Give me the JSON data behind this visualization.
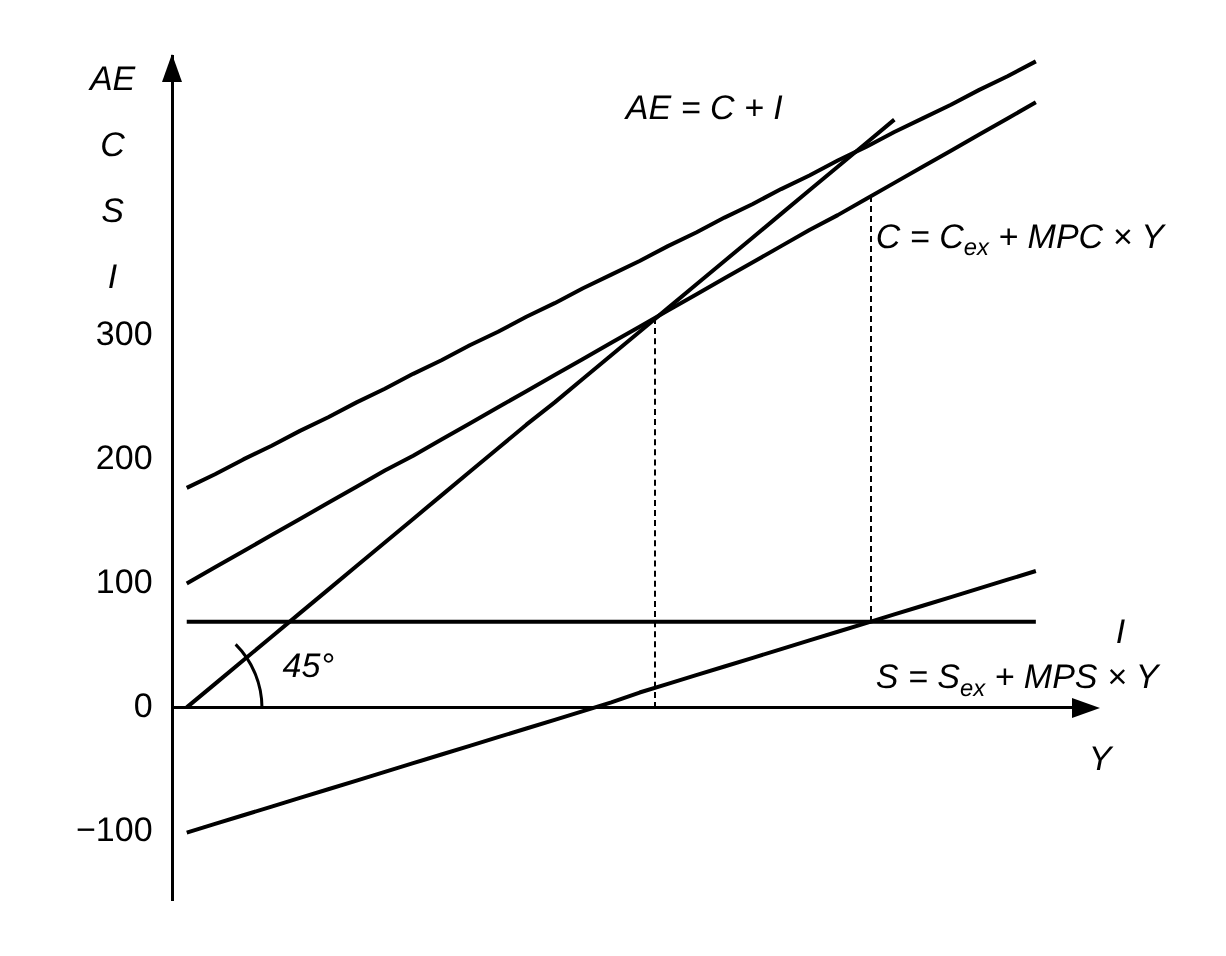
{
  "chart_data": {
    "type": "line",
    "xlabel": "Y",
    "ylabel": "AE C S I",
    "categories": [
      null,
      null,
      null,
      null,
      null,
      null,
      null,
      null,
      null,
      null,
      null,
      null,
      null,
      null,
      null,
      null,
      null,
      null,
      null,
      null,
      null,
      null,
      null,
      null,
      null,
      null,
      null,
      null,
      null,
      null,
      null
    ],
    "series": [
      {
        "color": "#000000",
        "values": [
          0,
          19,
          38,
          57,
          76,
          95,
          114,
          133,
          152,
          171,
          190,
          209,
          228,
          246,
          265,
          284,
          303,
          322,
          341,
          360,
          379,
          398,
          417,
          436,
          455,
          474,
          null,
          null,
          null,
          null,
          null
        ]
      },
      {
        "name": "AE = C + I",
        "color": "#000000",
        "values": [
          177,
          188,
          200,
          211,
          223,
          234,
          246,
          257,
          269,
          280,
          292,
          303,
          315,
          326,
          338,
          349,
          360,
          372,
          383,
          395,
          406,
          418,
          429,
          441,
          452,
          464,
          475,
          486,
          498,
          509,
          521
        ]
      },
      {
        "name": "C = C$_{ex}$ + MPC × Y",
        "color": "#000000",
        "values": [
          100,
          113,
          126,
          139,
          152,
          165,
          178,
          191,
          203,
          216,
          229,
          242,
          255,
          268,
          281,
          294,
          307,
          320,
          333,
          346,
          359,
          372,
          385,
          397,
          410,
          423,
          436,
          449,
          462,
          475,
          488
        ]
      },
      {
        "name": "S = S$_{ex}$ + MPS × Y",
        "color": "#000000",
        "values": [
          -101,
          -94,
          -87,
          -80,
          -73,
          -66,
          -59,
          -52,
          -45,
          -38,
          -31,
          -24,
          -17,
          -10,
          -3,
          4,
          12,
          19,
          26,
          33,
          40,
          47,
          54,
          61,
          68,
          75,
          82,
          89,
          96,
          103,
          110
        ]
      },
      {
        "name": "I",
        "color": "#000000",
        "values": [
          69,
          69,
          69,
          69,
          69,
          69,
          69,
          69,
          69,
          69,
          69,
          69,
          69,
          69,
          69,
          69,
          69,
          69,
          69,
          69,
          69,
          69,
          69,
          69,
          69,
          69,
          69,
          69,
          69,
          69,
          69
        ]
      }
    ],
    "annotations": [
      "45°"
    ],
    "ylim": [
      -155,
      525
    ],
    "yticks": [
      -100,
      0,
      100,
      200,
      300
    ],
    "tick_labels": "y",
    "grid": false,
    "legend": false,
    "marker": "none",
    "line_style": "solid"
  }
}
